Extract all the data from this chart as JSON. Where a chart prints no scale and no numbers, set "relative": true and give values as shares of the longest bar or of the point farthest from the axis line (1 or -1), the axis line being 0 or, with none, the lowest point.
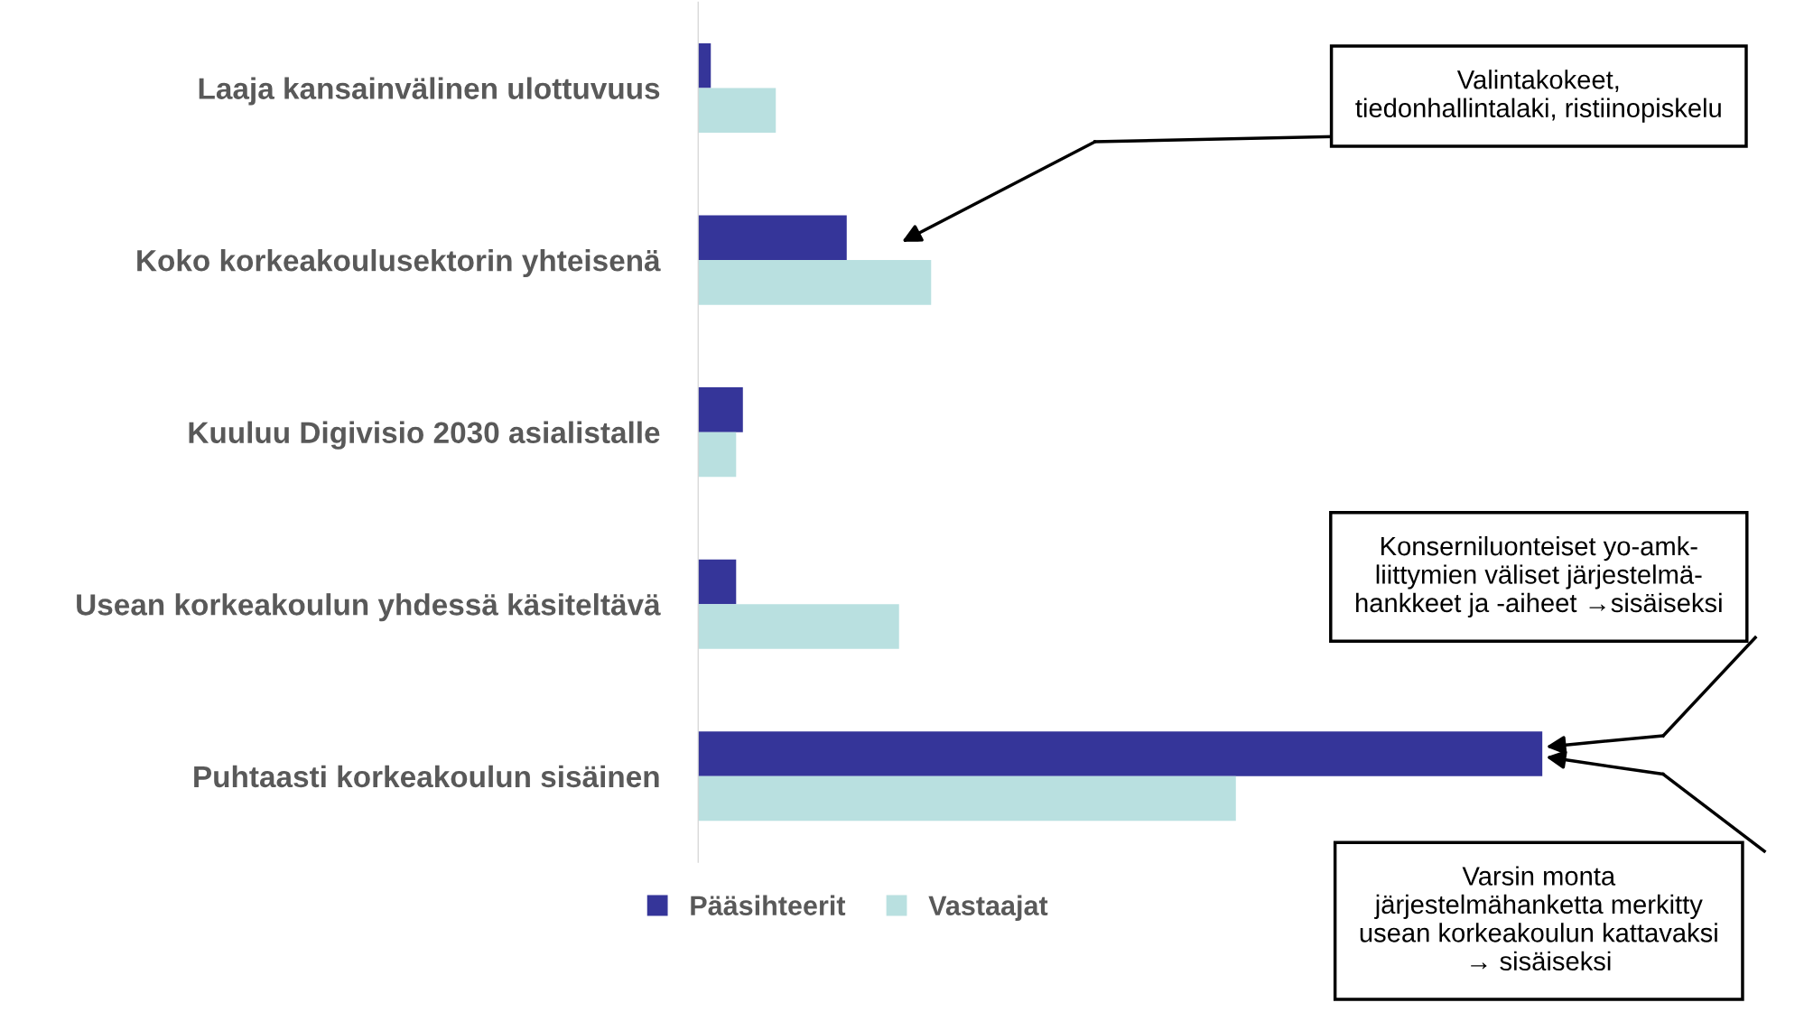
{
  "chart_data": {
    "type": "bar",
    "orientation": "horizontal",
    "relative": true,
    "legend": "bottom",
    "grid": false,
    "categories": [
      "Laaja kansainvälinen ulottuvuus",
      "Koko korkeakoulusektorin yhteisenä",
      "Kuuluu Digivisio 2030 asialistalle",
      "Usean korkeakoulun yhdessä käsiteltävä",
      "Puhtaasti korkeakoulun sisäinen"
    ],
    "series": [
      {
        "name": "Pääsihteerit",
        "color": "#353599",
        "values": [
          0.015,
          0.176,
          0.053,
          0.045,
          1
        ]
      },
      {
        "name": "Vastaajat",
        "color": "#b9e0e0",
        "values": [
          0.092,
          0.276,
          0.045,
          0.238,
          0.637
        ]
      }
    ],
    "annotations": [
      "Valintakokeet,\ntiedonhallintalaki, ristiinopiskelu",
      "Konserniluonteiset yo-amk-\nliittymien väliset järjestelmä-\nhankkeet ja -aiheet →sisäiseksi",
      "Varsin monta\njärjestelmähanketta merkitty\nusean korkeakoulun kattavaksi\n→ sisäiseksi"
    ]
  }
}
